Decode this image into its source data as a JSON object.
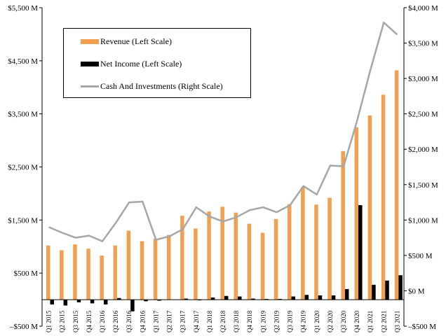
{
  "chart_data": {
    "type": "bar",
    "categories": [
      "Q1 2015",
      "Q2 2015",
      "Q3 2015",
      "Q4 2015",
      "Q1 2016",
      "Q2 2016",
      "Q3 2016",
      "Q4 2016",
      "Q1 2017",
      "Q2 2017",
      "Q3 2017",
      "Q4 2017",
      "Q1 2018",
      "Q2 2018",
      "Q3 2018",
      "Q4 2018",
      "Q1 2019",
      "Q2 2019",
      "Q3 2019",
      "Q4 2019",
      "Q1 2020",
      "Q2 2020",
      "Q3 2020",
      "Q4 2020",
      "Q1 2021",
      "Q2 2021",
      "Q3 2021"
    ],
    "series": [
      {
        "name": "Revenue (Left Scale)",
        "type": "bar",
        "axis": "left",
        "color": "#F0A050",
        "values": [
          1020,
          930,
          1040,
          960,
          830,
          1020,
          1300,
          1100,
          1150,
          1220,
          1580,
          1340,
          1660,
          1750,
          1640,
          1430,
          1260,
          1520,
          1800,
          2120,
          1790,
          1920,
          2800,
          3250,
          3470,
          3860,
          4320
        ]
      },
      {
        "name": "Net Income (Left Scale)",
        "type": "bar",
        "axis": "left",
        "color": "#000000",
        "values": [
          -90,
          -110,
          -50,
          -70,
          -90,
          30,
          -220,
          -30,
          -20,
          0,
          20,
          -10,
          40,
          70,
          60,
          20,
          10,
          10,
          60,
          90,
          80,
          80,
          200,
          1780,
          280,
          360,
          460
        ]
      },
      {
        "name": "Cash And Investments (Right Scale)",
        "type": "line",
        "axis": "right",
        "color": "#A6A6A6",
        "values": [
          900,
          820,
          750,
          780,
          700,
          960,
          1250,
          1260,
          720,
          770,
          870,
          1180,
          1050,
          980,
          1040,
          1140,
          1180,
          1110,
          1210,
          1480,
          1360,
          1770,
          1760,
          2400,
          3120,
          3790,
          3620
        ]
      }
    ],
    "y_left": {
      "ylim": [
        -500,
        5500
      ],
      "ticks": [
        -500,
        500,
        1500,
        2500,
        3500,
        4500,
        5500
      ],
      "tick_labels": [
        "–$500 M",
        "$500 M",
        "$1,500 M",
        "$2,500 M",
        "$3,500 M",
        "$4,500 M",
        "$5,500 M"
      ]
    },
    "y_right": {
      "ylim": [
        -500,
        4000
      ],
      "ticks": [
        -500,
        0,
        500,
        1000,
        1500,
        2000,
        2500,
        3000,
        3500,
        4000
      ],
      "tick_labels": [
        "–$500 M",
        "$0 M",
        "$500 M",
        "$1,000 M",
        "$1,500 M",
        "$2,000 M",
        "$2,500 M",
        "$3,000 M",
        "$3,500 M",
        "$4,000 M"
      ]
    },
    "grid": false,
    "legend_position": "top-left"
  }
}
